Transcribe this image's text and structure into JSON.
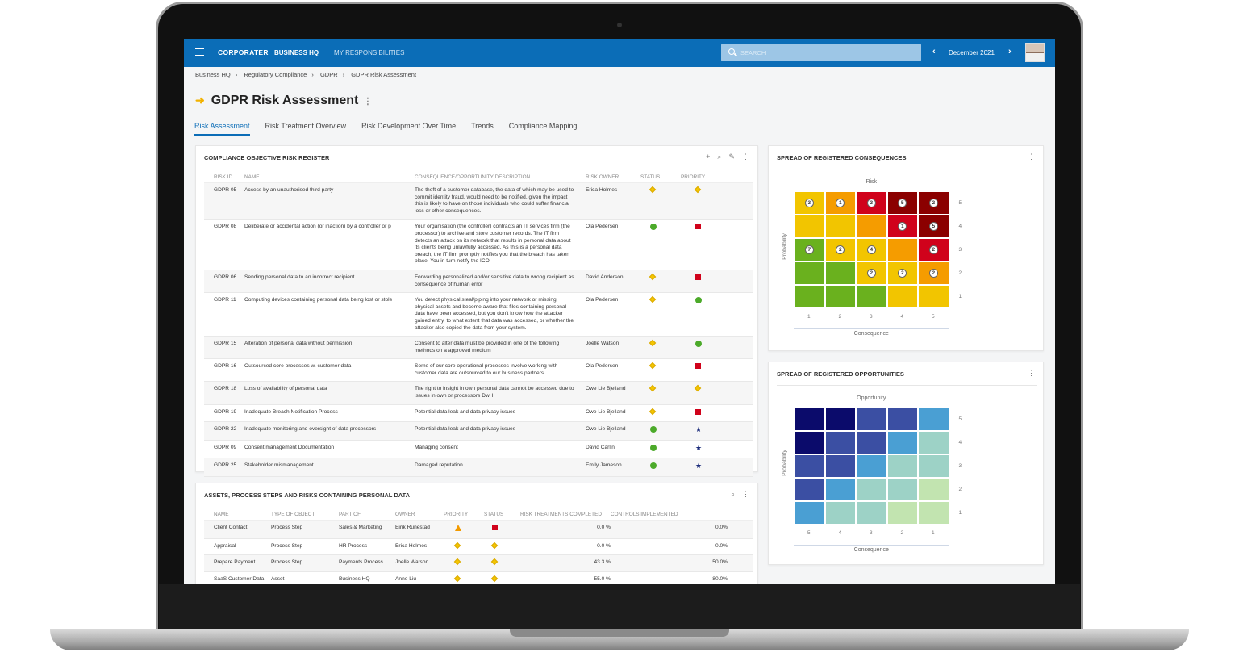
{
  "topbar": {
    "logo": "CORPORATER",
    "nav": [
      "BUSINESS HQ",
      "MY RESPONSIBILITIES"
    ],
    "search_placeholder": "SEARCH",
    "date": "December 2021",
    "prev": "‹",
    "next": "›"
  },
  "breadcrumb": [
    "Business HQ",
    "Regulatory Compliance",
    "GDPR",
    "GDPR Risk Assessment"
  ],
  "breadcrumb_sep": "›",
  "page": {
    "title": "GDPR Risk Assessment",
    "arrow": "➜",
    "menu": "⋮"
  },
  "tabs": [
    "Risk Assessment",
    "Risk Treatment Overview",
    "Risk Development Over Time",
    "Trends",
    "Compliance Mapping"
  ],
  "register": {
    "title": "COMPLIANCE OBJECTIVE RISK REGISTER",
    "tools": [
      "+",
      "⌕",
      "✎",
      "⋮"
    ],
    "columns": [
      "RISK ID",
      "NAME",
      "CONSEQUENCE/OPPORTUNITY DESCRIPTION",
      "RISK OWNER",
      "STATUS",
      "PRIORITY"
    ],
    "rows": [
      {
        "id": "GDPR 05",
        "name": "Access by an unauthorised third party",
        "desc": "The theft of a customer database, the data of which may be used to commit identity fraud, would need to be notified, given the impact this is likely to have on those individuals who could suffer financial loss or other consequences.",
        "owner": "Erica Holmes",
        "status": "diamond-yellow",
        "priority": "diamond-yellow"
      },
      {
        "id": "GDPR 08",
        "name": "Deliberate or accidental action (or inaction) by a controller or p",
        "desc": "Your organisation (the controller) contracts an IT services firm (the processor) to archive and store customer records. The IT firm detects an attack on its network that results in personal data about its clients being unlawfully accessed. As this is a personal data breach, the IT firm promptly notifies you that the breach has taken place. You in turn notify the ICO.",
        "owner": "Ola Pedersen",
        "status": "circle-green",
        "priority": "square-red"
      },
      {
        "id": "GDPR 06",
        "name": "Sending personal data to an incorrect recipient",
        "desc": "Forwarding personalized and/or sensitive data to wrong recipient as consequence of human error",
        "owner": "David Anderson",
        "status": "diamond-yellow",
        "priority": "square-red"
      },
      {
        "id": "GDPR 11",
        "name": "Computing devices containing personal data being lost or stole",
        "desc": "You detect physical steal/piping into your network or missing physical assets and become aware that files containing personal data have been accessed, but you don't know how the attacker gained entry, to what extent that data was accessed, or whether the attacker also copied the data from your system.",
        "owner": "Ola Pedersen",
        "status": "diamond-yellow",
        "priority": "circle-green"
      },
      {
        "id": "GDPR 15",
        "name": "Alteration of personal data without permission",
        "desc": "Consent to alter data must be provided in one of the following methods on a approved medium",
        "owner": "Joelle Watson",
        "status": "diamond-yellow",
        "priority": "circle-green"
      },
      {
        "id": "GDPR 16",
        "name": "Outsourced core processes w. customer data",
        "desc": "Some of our core operational processes involve working with customer data are outsourced to our business partners",
        "owner": "Ola Pedersen",
        "status": "diamond-yellow",
        "priority": "square-red"
      },
      {
        "id": "GDPR 18",
        "name": "Loss of availability of personal data",
        "desc": "The right to insight in own personal data cannot be accessed due to issues in own or processors DwH",
        "owner": "Owe Lie Bjelland",
        "status": "diamond-yellow",
        "priority": "diamond-yellow"
      },
      {
        "id": "GDPR 19",
        "name": "Inadequate Breach Notification Process",
        "desc": "Potential data leak and data privacy issues",
        "owner": "Owe Lie Bjelland",
        "status": "diamond-yellow",
        "priority": "square-red"
      },
      {
        "id": "GDPR 22",
        "name": "Inadequate monitoring and oversight of data processors",
        "desc": "Potential data leak and data privacy issues",
        "owner": "Owe Lie Bjelland",
        "status": "circle-green",
        "priority": "star-blue"
      },
      {
        "id": "GDPR 09",
        "name": "Consent management Documentation",
        "desc": "Managing consent",
        "owner": "David Carlin",
        "status": "circle-green",
        "priority": "star-blue"
      },
      {
        "id": "GDPR 25",
        "name": "Stakeholder mismanagement",
        "desc": "Damaged reputation",
        "owner": "Emily Jameson",
        "status": "circle-green",
        "priority": "star-blue"
      }
    ]
  },
  "assets": {
    "title": "ASSETS, PROCESS STEPS AND RISKS CONTAINING PERSONAL DATA",
    "tools": [
      "⌕",
      "⋮"
    ],
    "columns": [
      "NAME",
      "TYPE OF OBJECT",
      "PART OF",
      "OWNER",
      "PRIORITY",
      "STATUS",
      "RISK TREATMENTS COMPLETED",
      "CONTROLS IMPLEMENTED"
    ],
    "rows": [
      {
        "name": "Client Contact",
        "type": "Process Step",
        "part": "Sales & Marketing",
        "owner": "Eirik Runestad",
        "priority": "triangle-orange",
        "status": "square-red",
        "treat": "0.0 %",
        "controls": "0.0%"
      },
      {
        "name": "Appraisal",
        "type": "Process Step",
        "part": "HR Process",
        "owner": "Erica Holmes",
        "priority": "diamond-yellow",
        "status": "diamond-yellow",
        "treat": "0.0 %",
        "controls": "0.0%"
      },
      {
        "name": "Prepare Payment",
        "type": "Process Step",
        "part": "Payments Process",
        "owner": "Joelle Watson",
        "priority": "diamond-yellow",
        "status": "diamond-yellow",
        "treat": "43.3 %",
        "controls": "50.0%"
      },
      {
        "name": "SaaS Customer Data",
        "type": "Asset",
        "part": "Business HQ",
        "owner": "Anne Liu",
        "priority": "diamond-yellow",
        "status": "diamond-yellow",
        "treat": "55.0 %",
        "controls": "80.0%"
      }
    ]
  },
  "chart_data": [
    {
      "type": "heatmap",
      "title": "SPREAD OF REGISTERED CONSEQUENCES",
      "subtitle": "Risk",
      "xlabel": "Consequence",
      "ylabel": "Probability",
      "menu": "⋮",
      "x": [
        "1",
        "2",
        "3",
        "4",
        "5"
      ],
      "y": [
        "5",
        "4",
        "3",
        "2",
        "1"
      ],
      "colors": [
        [
          "#f2c500",
          "#f59c00",
          "#d0021b",
          "#8b0000",
          "#8b0000"
        ],
        [
          "#f2c500",
          "#f2c500",
          "#f59c00",
          "#d0021b",
          "#8b0000"
        ],
        [
          "#6ab11e",
          "#f2c500",
          "#f2c500",
          "#f59c00",
          "#d0021b"
        ],
        [
          "#6ab11e",
          "#6ab11e",
          "#f2c500",
          "#f2c500",
          "#f59c00"
        ],
        [
          "#6ab11e",
          "#6ab11e",
          "#6ab11e",
          "#f2c500",
          "#f2c500"
        ]
      ],
      "counts": [
        [
          3,
          1,
          3,
          5,
          2
        ],
        [
          null,
          null,
          null,
          1,
          5
        ],
        [
          7,
          2,
          4,
          null,
          2
        ],
        [
          null,
          null,
          2,
          2,
          2
        ],
        [
          null,
          null,
          null,
          null,
          null
        ]
      ]
    },
    {
      "type": "heatmap",
      "title": "SPREAD OF REGISTERED OPPORTUNITIES",
      "subtitle": "Opportunity",
      "xlabel": "Consequence",
      "ylabel": "Probability",
      "menu": "⋮",
      "x": [
        "5",
        "4",
        "3",
        "2",
        "1"
      ],
      "y": [
        "5",
        "4",
        "3",
        "2",
        "1"
      ],
      "colors": [
        [
          "#0b0b6b",
          "#0b0b6b",
          "#3b4fa3",
          "#3b4fa3",
          "#4a9fd3"
        ],
        [
          "#0b0b6b",
          "#3b4fa3",
          "#3b4fa3",
          "#4a9fd3",
          "#9dd2c6"
        ],
        [
          "#3b4fa3",
          "#3b4fa3",
          "#4a9fd3",
          "#9dd2c6",
          "#9dd2c6"
        ],
        [
          "#3b4fa3",
          "#4a9fd3",
          "#9dd2c6",
          "#9dd2c6",
          "#c2e4b0"
        ],
        [
          "#4a9fd3",
          "#9dd2c6",
          "#9dd2c6",
          "#c2e4b0",
          "#c2e4b0"
        ]
      ],
      "counts": [
        [
          null,
          null,
          null,
          null,
          null
        ],
        [
          null,
          null,
          null,
          null,
          null
        ],
        [
          null,
          null,
          null,
          null,
          null
        ],
        [
          null,
          null,
          null,
          null,
          null
        ],
        [
          null,
          null,
          null,
          null,
          null
        ]
      ]
    }
  ]
}
